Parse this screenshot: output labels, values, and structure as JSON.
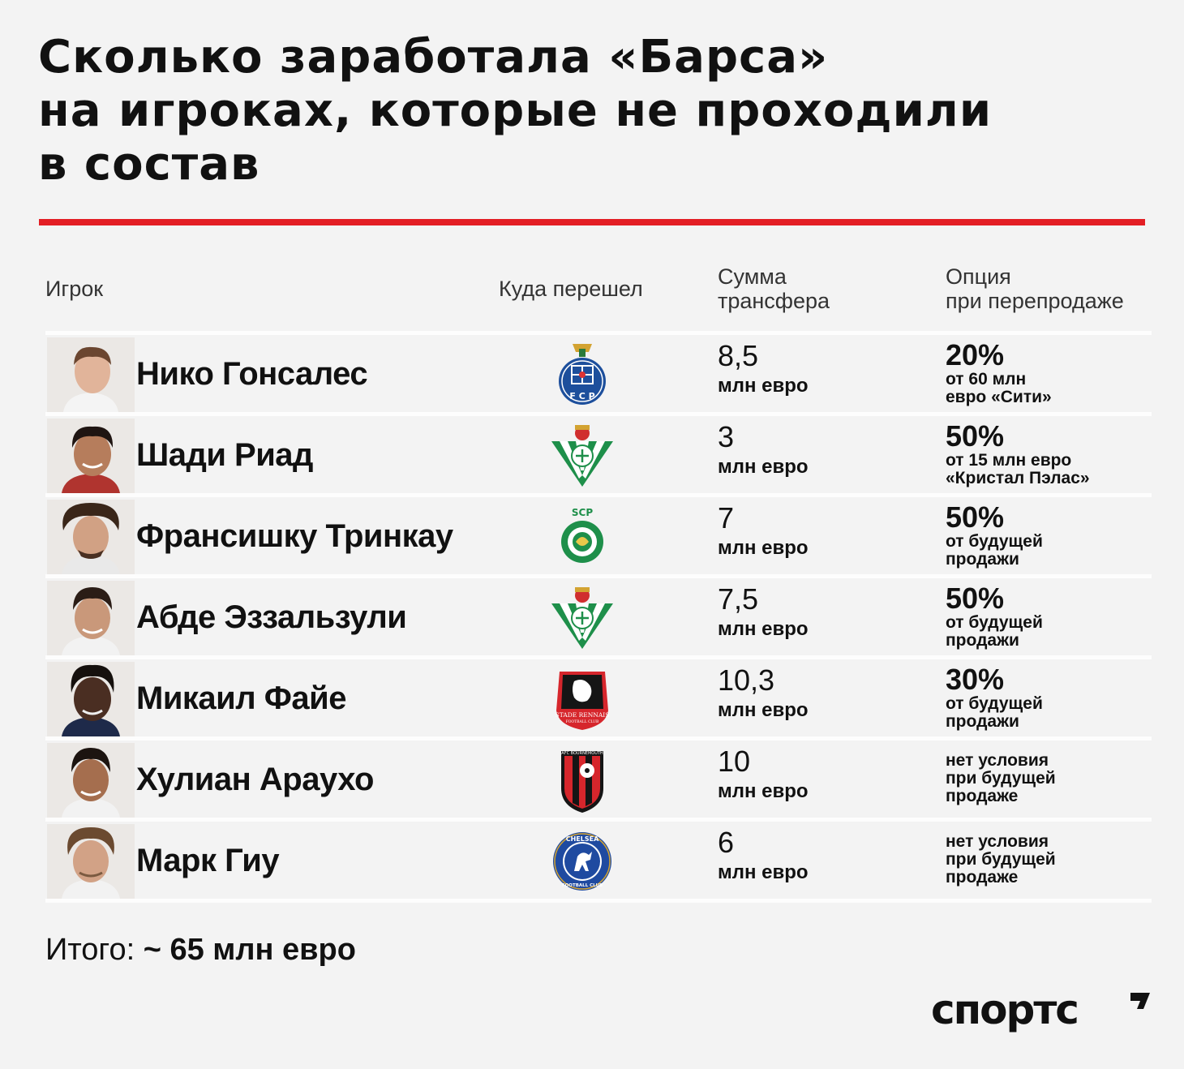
{
  "title": {
    "line1": "Сколько заработала «Барса»",
    "line2": "на игроках, которые не проходили",
    "line3": "в состав"
  },
  "accent_color": "#e31e24",
  "headers": {
    "player": "Игрок",
    "club": "Куда перешел",
    "fee_line1": "Сумма",
    "fee_line2": "трансфера",
    "option_line1": "Опция",
    "option_line2": "при перепродаже"
  },
  "rows": [
    {
      "player": "Нико Гонсалес",
      "club_icon": "fc-porto-crest-icon",
      "fee": "8,5",
      "fee_unit": "млн евро",
      "option_pct": "20%",
      "option_note_1": "от 60 млн",
      "option_note_2": "евро «Сити»",
      "option_note_3": ""
    },
    {
      "player": "Шади Риад",
      "club_icon": "real-betis-crest-icon",
      "fee": "3",
      "fee_unit": "млн евро",
      "option_pct": "50%",
      "option_note_1": "от 15 млн евро",
      "option_note_2": "«Кристал Пэлас»",
      "option_note_3": ""
    },
    {
      "player": "Франсишку Тринкау",
      "club_icon": "sporting-cp-crest-icon",
      "fee": "7",
      "fee_unit": "млн евро",
      "option_pct": "50%",
      "option_note_1": "от будущей",
      "option_note_2": "продажи",
      "option_note_3": ""
    },
    {
      "player": "Абде Эззальзули",
      "club_icon": "real-betis-crest-icon",
      "fee": "7,5",
      "fee_unit": "млн евро",
      "option_pct": "50%",
      "option_note_1": "от будущей",
      "option_note_2": "продажи",
      "option_note_3": ""
    },
    {
      "player": "Микаил Файе",
      "club_icon": "stade-rennais-crest-icon",
      "fee": "10,3",
      "fee_unit": "млн евро",
      "option_pct": "30%",
      "option_note_1": "от будущей",
      "option_note_2": "продажи",
      "option_note_3": ""
    },
    {
      "player": "Хулиан Араухо",
      "club_icon": "afc-bournemouth-crest-icon",
      "fee": "10",
      "fee_unit": "млн евро",
      "option_pct": "",
      "option_note_1": "нет условия",
      "option_note_2": "при будущей",
      "option_note_3": "продаже"
    },
    {
      "player": "Марк Гиу",
      "club_icon": "chelsea-crest-icon",
      "fee": "6",
      "fee_unit": "млн евро",
      "option_pct": "",
      "option_note_1": "нет условия",
      "option_note_2": "при будущей",
      "option_note_3": "продаже"
    }
  ],
  "crest_text": {
    "porto": "F C P",
    "sporting_top": "SCP",
    "rennes": "STADE RENNAIS",
    "rennes_sub": "FOOTBALL CLUB",
    "bournemouth": "AFC BOURNEMOUTH",
    "chelsea_top": "CHELSEA",
    "chelsea_bottom": "FOOTBALL CLUB"
  },
  "total": {
    "label": "Итого:",
    "value": "~ 65 млн евро"
  },
  "logo": {
    "text": "спортс",
    "icon": "sports-ru-logo-icon"
  }
}
